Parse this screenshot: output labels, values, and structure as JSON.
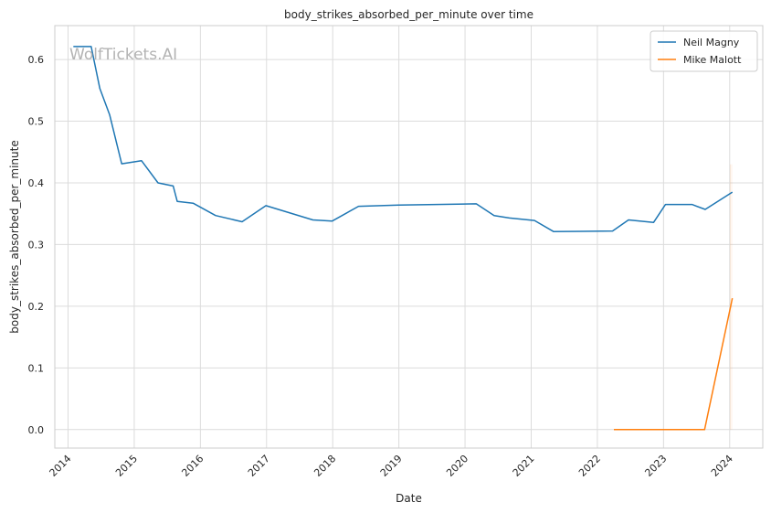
{
  "chart_data": {
    "type": "line",
    "title": "body_strikes_absorbed_per_minute over time",
    "xlabel": "Date",
    "ylabel": "body_strikes_absorbed_per_minute",
    "watermark": "WolfTickets.AI",
    "xlim": [
      2013.8,
      2024.5
    ],
    "ylim": [
      -0.03,
      0.655
    ],
    "x_ticks": [
      2014,
      2015,
      2016,
      2017,
      2018,
      2019,
      2020,
      2021,
      2022,
      2023,
      2024
    ],
    "x_tick_labels": [
      "2014",
      "2015",
      "2016",
      "2017",
      "2018",
      "2019",
      "2020",
      "2021",
      "2022",
      "2023",
      "2024"
    ],
    "y_ticks": [
      0.0,
      0.1,
      0.2,
      0.3,
      0.4,
      0.5,
      0.6
    ],
    "y_tick_labels": [
      "0.0",
      "0.1",
      "0.2",
      "0.3",
      "0.4",
      "0.5",
      "0.6"
    ],
    "grid": true,
    "legend_position": "top-right",
    "series": [
      {
        "name": "Neil Magny",
        "color": "#1f77b4",
        "x": [
          2014.08,
          2014.35,
          2014.48,
          2014.63,
          2014.81,
          2015.11,
          2015.36,
          2015.59,
          2015.65,
          2015.89,
          2016.23,
          2016.63,
          2016.99,
          2017.7,
          2017.99,
          2018.39,
          2019.0,
          2020.17,
          2020.44,
          2020.67,
          2021.05,
          2021.34,
          2022.23,
          2022.47,
          2022.85,
          2023.03,
          2023.43,
          2023.63,
          2024.04
        ],
        "y": [
          0.621,
          0.621,
          0.553,
          0.51,
          0.431,
          0.436,
          0.4,
          0.395,
          0.37,
          0.367,
          0.347,
          0.337,
          0.363,
          0.34,
          0.338,
          0.362,
          0.364,
          0.366,
          0.347,
          0.343,
          0.339,
          0.321,
          0.322,
          0.34,
          0.336,
          0.365,
          0.365,
          0.357,
          0.385
        ]
      },
      {
        "name": "Mike Malott",
        "color": "#ff7f0e",
        "x": [
          2022.25,
          2022.9,
          2023.2,
          2023.62,
          2024.04
        ],
        "y": [
          0.0,
          0.0,
          0.0,
          0.0,
          0.213
        ]
      }
    ]
  }
}
